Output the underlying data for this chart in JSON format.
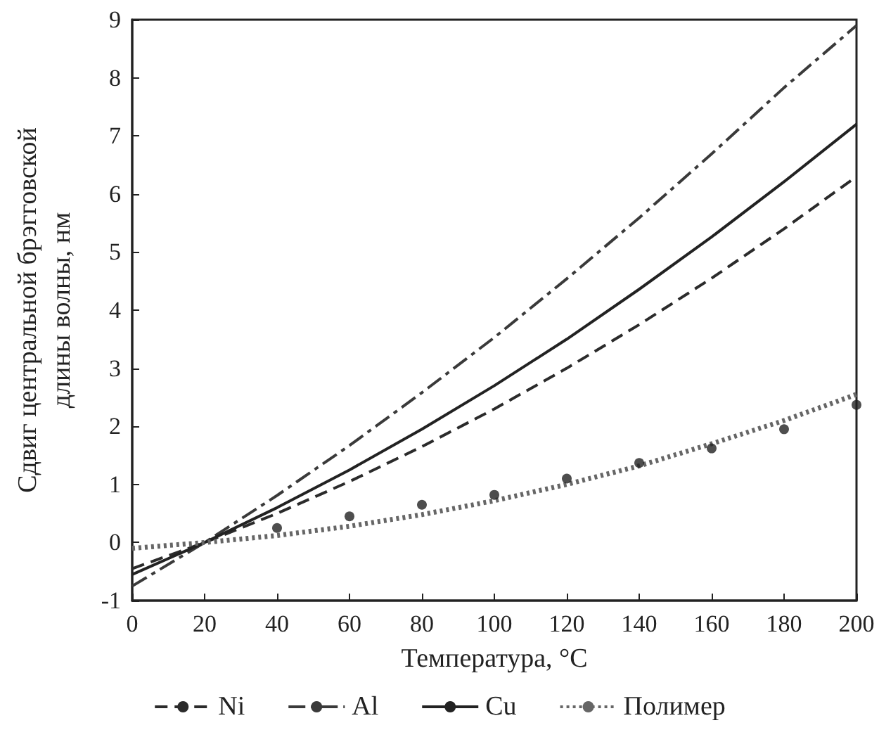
{
  "chart_data": {
    "type": "line",
    "xlabel": "Температура, °C",
    "ylabel": "Сдвиг центральной брэгговской\nдлины волны, нм",
    "x": [
      0,
      20,
      40,
      60,
      80,
      100,
      120,
      140,
      160,
      180,
      200
    ],
    "xlim": [
      0,
      200
    ],
    "xticks": [
      0,
      20,
      40,
      60,
      80,
      100,
      120,
      140,
      160,
      180,
      200
    ],
    "ylim": [
      -1,
      9
    ],
    "yticks": [
      -1,
      0,
      1,
      2,
      3,
      4,
      5,
      6,
      7,
      8,
      9
    ],
    "grid": false,
    "legend": "bottom",
    "marker": "none",
    "series": [
      {
        "name": "Ni",
        "color": "#2b2b2b",
        "line_style": "dashed",
        "values": [
          -0.45,
          0,
          0.5,
          1.05,
          1.65,
          2.3,
          3.0,
          3.75,
          4.55,
          5.4,
          6.3
        ]
      },
      {
        "name": "Al",
        "color": "#3a3a3a",
        "line_style": "dashdot",
        "values": [
          -0.75,
          0,
          0.81,
          1.67,
          2.58,
          3.53,
          4.54,
          5.59,
          6.69,
          7.83,
          8.9
        ]
      },
      {
        "name": "Cu",
        "color": "#222222",
        "line_style": "solid",
        "values": [
          -0.55,
          0,
          0.6,
          1.25,
          1.95,
          2.7,
          3.5,
          4.36,
          5.26,
          6.21,
          7.2
        ]
      },
      {
        "name": "Полимер",
        "color": "#666666",
        "line_style": "dotted",
        "values": [
          -0.1,
          0,
          0.12,
          0.28,
          0.48,
          0.72,
          1.0,
          1.32,
          1.7,
          2.1,
          2.55
        ]
      },
      {
        "type": "scatter",
        "marker": "circle",
        "color": "#222222",
        "x": [
          40,
          60,
          80,
          100,
          120,
          140,
          160,
          180,
          200
        ],
        "values": [
          0.25,
          0.45,
          0.65,
          0.82,
          1.1,
          1.37,
          1.62,
          1.95,
          2.37
        ]
      }
    ]
  }
}
